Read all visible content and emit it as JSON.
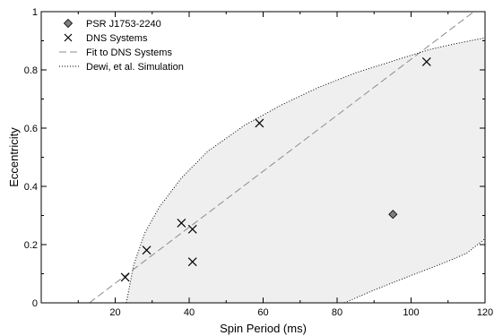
{
  "chart_data": {
    "type": "scatter",
    "xlabel": "Spin Period (ms)",
    "ylabel": "Eccentricity",
    "xlim": [
      0,
      120
    ],
    "ylim": [
      0,
      1
    ],
    "x_ticks": [
      20,
      40,
      60,
      80,
      100,
      120
    ],
    "y_ticks": [
      0,
      0.2,
      0.4,
      0.6,
      0.8,
      1
    ],
    "x_tick_labels": [
      "20",
      "40",
      "60",
      "80",
      "100",
      "120"
    ],
    "y_tick_labels": [
      "0",
      "0.2",
      "0.4",
      "0.6",
      "0.8",
      "1"
    ],
    "grid": false,
    "legend_position": "top-left",
    "series": [
      {
        "name": "PSR J1753-2240",
        "marker": "diamond",
        "color": "#808080",
        "points": [
          {
            "x": 95.1,
            "y": 0.304
          }
        ]
      },
      {
        "name": "DNS Systems",
        "marker": "x",
        "color": "#000000",
        "points": [
          {
            "x": 22.7,
            "y": 0.088
          },
          {
            "x": 28.5,
            "y": 0.181
          },
          {
            "x": 37.9,
            "y": 0.274
          },
          {
            "x": 40.9,
            "y": 0.253
          },
          {
            "x": 40.9,
            "y": 0.141
          },
          {
            "x": 59.0,
            "y": 0.617
          },
          {
            "x": 104.2,
            "y": 0.828
          }
        ]
      },
      {
        "name": "Fit to DNS Systems",
        "style": "dashed",
        "color": "#8c8c8c",
        "line": [
          {
            "x": 13,
            "y": 0
          },
          {
            "x": 117,
            "y": 1
          }
        ]
      },
      {
        "name": "Dewi, et al. Simulation",
        "style": "dotted",
        "color": "#000000",
        "region_fill": "#efefef",
        "upper_curve": [
          {
            "x": 23,
            "y": 0
          },
          {
            "x": 25,
            "y": 0.13
          },
          {
            "x": 28,
            "y": 0.24
          },
          {
            "x": 32,
            "y": 0.33
          },
          {
            "x": 38,
            "y": 0.43
          },
          {
            "x": 45,
            "y": 0.52
          },
          {
            "x": 55,
            "y": 0.61
          },
          {
            "x": 65,
            "y": 0.68
          },
          {
            "x": 75,
            "y": 0.74
          },
          {
            "x": 85,
            "y": 0.79
          },
          {
            "x": 95,
            "y": 0.83
          },
          {
            "x": 105,
            "y": 0.87
          },
          {
            "x": 112,
            "y": 0.89
          },
          {
            "x": 120,
            "y": 0.91
          }
        ],
        "lower_curve": [
          {
            "x": 82,
            "y": 0
          },
          {
            "x": 86,
            "y": 0.022
          },
          {
            "x": 90,
            "y": 0.044
          },
          {
            "x": 95,
            "y": 0.069
          },
          {
            "x": 100,
            "y": 0.094
          },
          {
            "x": 105,
            "y": 0.118
          },
          {
            "x": 110,
            "y": 0.143
          },
          {
            "x": 115,
            "y": 0.17
          },
          {
            "x": 120,
            "y": 0.22
          }
        ]
      }
    ]
  }
}
